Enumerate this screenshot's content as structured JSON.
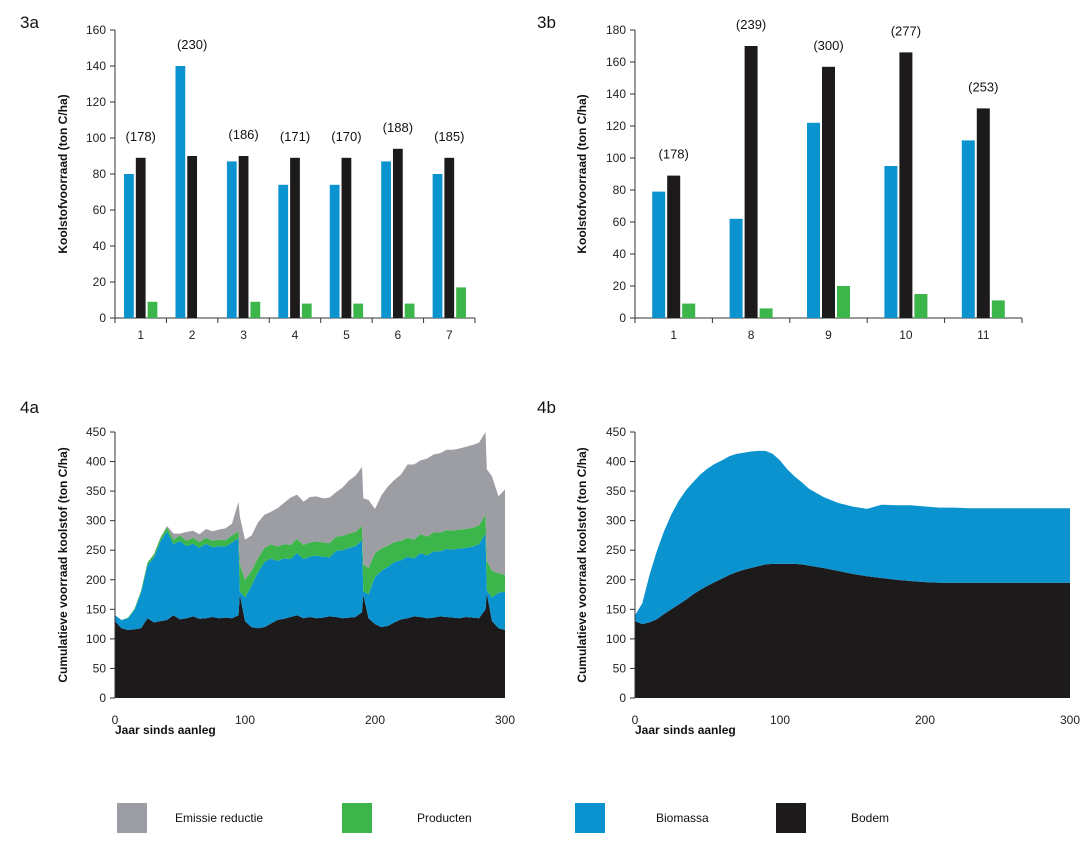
{
  "colors": {
    "emissie": "#9c9ea3",
    "producten": "#3cb54a",
    "biomassa": "#0b93d0",
    "bodem": "#1c1a1b"
  },
  "legend": [
    {
      "label": "Emissie reductie",
      "color": "#9c9ea3"
    },
    {
      "label": "Producten",
      "color": "#3cb54a"
    },
    {
      "label": "Biomassa",
      "color": "#0b93d0"
    },
    {
      "label": "Bodem",
      "color": "#1c1a1b"
    }
  ],
  "chart_data": [
    {
      "id": "3a",
      "panel_label": "3a",
      "type": "bar",
      "ylabel": "Koolstofvoorraad (ton C/ha)",
      "xlabel": "",
      "ylim": [
        0,
        160
      ],
      "yticks": [
        0,
        20,
        40,
        60,
        80,
        100,
        120,
        140,
        160
      ],
      "categories": [
        "1",
        "2",
        "3",
        "4",
        "5",
        "6",
        "7"
      ],
      "totals": [
        "(178)",
        "(230)",
        "(186)",
        "(171)",
        "(170)",
        "(188)",
        "(185)"
      ],
      "series": [
        {
          "name": "Biomassa",
          "values": [
            80,
            140,
            87,
            74,
            74,
            87,
            80
          ]
        },
        {
          "name": "Bodem",
          "values": [
            89,
            90,
            90,
            89,
            89,
            94,
            89
          ]
        },
        {
          "name": "Producten",
          "values": [
            9,
            0,
            9,
            8,
            8,
            8,
            17
          ]
        }
      ]
    },
    {
      "id": "3b",
      "panel_label": "3b",
      "type": "bar",
      "ylabel": "Koolstofvoorraad (ton C/ha)",
      "xlabel": "",
      "ylim": [
        0,
        180
      ],
      "yticks": [
        0,
        20,
        40,
        60,
        80,
        100,
        120,
        140,
        160,
        180
      ],
      "categories": [
        "1",
        "8",
        "9",
        "10",
        "11"
      ],
      "totals": [
        "(178)",
        "(239)",
        "(300)",
        "(277)",
        "(253)"
      ],
      "series": [
        {
          "name": "Biomassa",
          "values": [
            79,
            62,
            122,
            95,
            111
          ]
        },
        {
          "name": "Bodem",
          "values": [
            89,
            170,
            157,
            166,
            131
          ]
        },
        {
          "name": "Producten",
          "values": [
            9,
            6,
            20,
            15,
            11
          ]
        }
      ]
    },
    {
      "id": "4a",
      "panel_label": "4a",
      "type": "area",
      "ylabel": "Cumulatieve voorraad koolstof (ton C/ha)",
      "xlabel": "Jaar sinds aanleg",
      "xlim": [
        0,
        300
      ],
      "ylim": [
        0,
        450
      ],
      "xticks": [
        0,
        100,
        200,
        300
      ],
      "yticks": [
        0,
        50,
        100,
        150,
        200,
        250,
        300,
        350,
        400,
        450
      ],
      "x": [
        0,
        5,
        10,
        15,
        20,
        25,
        30,
        35,
        40,
        45,
        50,
        55,
        60,
        65,
        70,
        75,
        80,
        85,
        90,
        95,
        96,
        100,
        105,
        110,
        115,
        120,
        125,
        130,
        135,
        140,
        145,
        150,
        155,
        160,
        165,
        170,
        175,
        180,
        185,
        190,
        191,
        195,
        200,
        205,
        210,
        215,
        220,
        225,
        230,
        235,
        240,
        245,
        250,
        255,
        260,
        265,
        270,
        275,
        280,
        285,
        286,
        290,
        295,
        300
      ],
      "series": [
        {
          "name": "Bodem",
          "values": [
            130,
            118,
            115,
            116,
            118,
            135,
            128,
            130,
            132,
            140,
            133,
            135,
            138,
            134,
            135,
            137,
            135,
            136,
            135,
            140,
            175,
            130,
            120,
            118,
            120,
            126,
            132,
            134,
            137,
            140,
            135,
            137,
            135,
            136,
            138,
            137,
            135,
            136,
            137,
            145,
            175,
            135,
            125,
            120,
            122,
            128,
            133,
            135,
            138,
            137,
            135,
            136,
            138,
            137,
            136,
            135,
            137,
            136,
            135,
            150,
            177,
            130,
            118,
            115
          ]
        },
        {
          "name": "Biomassa",
          "values": [
            10,
            14,
            20,
            33,
            60,
            90,
            110,
            135,
            150,
            120,
            133,
            122,
            123,
            120,
            126,
            118,
            122,
            120,
            128,
            130,
            5,
            40,
            70,
            95,
            110,
            110,
            100,
            102,
            98,
            105,
            100,
            102,
            106,
            103,
            100,
            112,
            115,
            118,
            120,
            122,
            5,
            40,
            80,
            95,
            100,
            102,
            100,
            104,
            98,
            108,
            106,
            112,
            110,
            115,
            115,
            118,
            117,
            120,
            125,
            128,
            5,
            40,
            60,
            65
          ]
        },
        {
          "name": "Producten",
          "values": [
            0,
            0,
            1,
            2,
            3,
            4,
            5,
            6,
            7,
            8,
            9,
            9,
            10,
            10,
            10,
            11,
            11,
            11,
            12,
            12,
            47,
            30,
            25,
            24,
            24,
            24,
            24,
            24,
            24,
            24,
            24,
            24,
            24,
            24,
            24,
            24,
            24,
            24,
            24,
            24,
            46,
            45,
            40,
            38,
            36,
            34,
            33,
            32,
            32,
            32,
            32,
            32,
            32,
            32,
            32,
            32,
            32,
            32,
            32,
            32,
            50,
            45,
            33,
            28
          ]
        },
        {
          "name": "Emissie reductie",
          "values": [
            0,
            0,
            0,
            0,
            0,
            0,
            1,
            1,
            2,
            10,
            3,
            15,
            12,
            13,
            15,
            16,
            17,
            20,
            20,
            50,
            80,
            68,
            60,
            60,
            56,
            55,
            65,
            70,
            80,
            75,
            73,
            77,
            76,
            75,
            77,
            75,
            82,
            90,
            95,
            100,
            112,
            115,
            75,
            90,
            100,
            105,
            112,
            124,
            127,
            125,
            132,
            132,
            134,
            136,
            137,
            137,
            139,
            140,
            140,
            140,
            155,
            160,
            130,
            145
          ]
        }
      ]
    },
    {
      "id": "4b",
      "panel_label": "4b",
      "type": "area",
      "ylabel": "Cumulatieve voorraad koolstof (ton C/ha)",
      "xlabel": "Jaar sinds aanleg",
      "xlim": [
        0,
        300
      ],
      "ylim": [
        0,
        450
      ],
      "xticks": [
        0,
        100,
        200,
        300
      ],
      "yticks": [
        0,
        50,
        100,
        150,
        200,
        250,
        300,
        350,
        400,
        450
      ],
      "x": [
        0,
        5,
        10,
        15,
        20,
        25,
        30,
        35,
        40,
        45,
        50,
        55,
        60,
        65,
        70,
        75,
        80,
        85,
        90,
        95,
        100,
        105,
        110,
        115,
        120,
        130,
        140,
        150,
        160,
        170,
        180,
        190,
        200,
        210,
        220,
        230,
        240,
        250,
        260,
        270,
        280,
        290,
        300
      ],
      "series": [
        {
          "name": "Bodem",
          "values": [
            130,
            125,
            128,
            133,
            142,
            150,
            158,
            166,
            175,
            183,
            190,
            196,
            202,
            208,
            213,
            217,
            220,
            223,
            226,
            227,
            227,
            227,
            227,
            226,
            224,
            220,
            215,
            210,
            206,
            203,
            200,
            198,
            196,
            195,
            195,
            195,
            195,
            195,
            195,
            195,
            195,
            195,
            195
          ]
        },
        {
          "name": "Biomassa",
          "values": [
            10,
            35,
            80,
            115,
            140,
            160,
            175,
            185,
            190,
            195,
            198,
            200,
            200,
            201,
            200,
            198,
            197,
            195,
            192,
            186,
            175,
            160,
            148,
            139,
            130,
            120,
            115,
            114,
            114,
            124,
            126,
            128,
            128,
            127,
            127,
            126,
            126,
            126,
            126,
            126,
            126,
            126,
            126
          ]
        }
      ]
    }
  ]
}
